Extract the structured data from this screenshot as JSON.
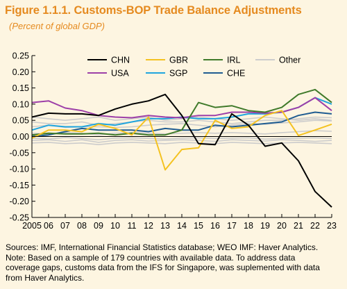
{
  "figure": {
    "title": "Figure 1.1.1. Customs-BOP Trade Balance Adjustments",
    "subtitle": "(Percent of global GDP)"
  },
  "chart_data": {
    "type": "line",
    "x": [
      "2005",
      "06",
      "07",
      "08",
      "09",
      "10",
      "11",
      "12",
      "13",
      "14",
      "15",
      "16",
      "17",
      "18",
      "19",
      "20",
      "21",
      "22",
      "23"
    ],
    "ylim": [
      -0.25,
      0.25
    ],
    "yticks": [
      0.25,
      0.2,
      0.15,
      0.1,
      0.05,
      0.0,
      -0.05,
      -0.1,
      -0.15,
      -0.2,
      -0.25
    ],
    "ytick_labels": [
      "0.25",
      "0.20",
      "0.15",
      "0.10",
      "0.05",
      "0.00",
      "-0.05",
      "-0.10",
      "-0.15",
      "-0.20",
      "-0.25"
    ],
    "grid": false,
    "legend_position": "top-center",
    "series": [
      {
        "name": "CHN",
        "color": "#000000",
        "values": [
          0.06,
          0.072,
          0.07,
          0.07,
          0.065,
          0.085,
          0.1,
          0.11,
          0.13,
          0.065,
          -0.022,
          -0.025,
          0.07,
          0.035,
          -0.03,
          -0.02,
          -0.075,
          -0.17,
          -0.218
        ]
      },
      {
        "name": "USA",
        "color": "#9D3FA8",
        "values": [
          0.105,
          0.11,
          0.088,
          0.08,
          0.065,
          0.06,
          0.058,
          0.065,
          0.06,
          0.058,
          0.065,
          0.065,
          0.075,
          0.075,
          0.072,
          0.075,
          0.09,
          0.12,
          0.08
        ]
      },
      {
        "name": "GBR",
        "color": "#F4C220",
        "values": [
          -0.005,
          0.02,
          0.02,
          0.015,
          0.038,
          0.025,
          0.005,
          0.06,
          -0.103,
          -0.04,
          -0.035,
          0.05,
          0.025,
          0.03,
          0.065,
          0.08,
          0.003,
          0.02,
          0.038
        ]
      },
      {
        "name": "SGP",
        "color": "#1FA5DE",
        "values": [
          0.02,
          0.035,
          0.03,
          0.03,
          0.04,
          0.035,
          0.045,
          0.055,
          0.055,
          0.06,
          0.055,
          0.055,
          0.06,
          0.07,
          0.07,
          0.075,
          0.09,
          0.12,
          0.1
        ]
      },
      {
        "name": "IRL",
        "color": "#3F7A2A",
        "values": [
          0.005,
          0.01,
          0.008,
          0.008,
          0.01,
          0.005,
          0.01,
          0.005,
          0.005,
          0.02,
          0.105,
          0.09,
          0.095,
          0.08,
          0.075,
          0.09,
          0.13,
          0.145,
          0.105
        ]
      },
      {
        "name": "CHE",
        "color": "#1F5C91",
        "values": [
          0.0,
          0.005,
          0.015,
          0.025,
          0.02,
          0.02,
          0.02,
          0.015,
          0.025,
          0.02,
          0.02,
          0.035,
          0.03,
          0.035,
          0.04,
          0.045,
          0.065,
          0.075,
          0.07
        ]
      },
      {
        "name": "Other",
        "color": "#CCCCCC",
        "values": [
          0.02,
          0.015,
          0.02,
          0.015,
          0.01,
          0.02,
          0.015,
          0.015,
          0.01,
          0.015,
          0.02,
          0.015,
          0.02,
          0.015,
          0.015,
          0.02,
          0.025,
          0.03,
          0.03
        ]
      }
    ],
    "other_lines": [
      [
        0.045,
        0.04,
        0.04,
        0.045,
        0.035,
        0.04,
        0.045,
        0.05,
        0.045,
        0.045,
        0.05,
        0.045,
        0.04,
        0.045,
        0.05,
        0.05,
        0.055,
        0.06,
        0.058
      ],
      [
        0.03,
        0.035,
        0.028,
        0.03,
        0.03,
        0.028,
        0.03,
        0.035,
        0.038,
        0.04,
        0.035,
        0.03,
        0.035,
        0.04,
        0.038,
        0.042,
        0.045,
        0.05,
        0.048
      ],
      [
        0.01,
        0.008,
        0.012,
        0.01,
        0.005,
        0.01,
        0.012,
        0.01,
        0.008,
        0.01,
        0.012,
        0.01,
        0.012,
        0.01,
        0.008,
        0.012,
        0.015,
        0.018,
        0.016
      ],
      [
        -0.005,
        -0.008,
        -0.003,
        -0.006,
        -0.01,
        -0.005,
        -0.004,
        -0.006,
        -0.008,
        -0.005,
        -0.004,
        -0.006,
        -0.005,
        -0.004,
        -0.008,
        -0.006,
        -0.005,
        -0.004,
        -0.006
      ],
      [
        -0.012,
        -0.01,
        -0.015,
        -0.01,
        -0.018,
        -0.012,
        -0.01,
        -0.014,
        -0.012,
        -0.01,
        -0.012,
        -0.015,
        -0.01,
        -0.012,
        -0.014,
        -0.01,
        -0.012,
        -0.015,
        -0.012
      ],
      [
        -0.02,
        -0.018,
        -0.022,
        -0.02,
        -0.025,
        -0.02,
        -0.018,
        -0.02,
        -0.022,
        -0.018,
        -0.02,
        -0.022,
        -0.018,
        -0.02,
        -0.022,
        -0.02,
        -0.018,
        -0.02,
        -0.022
      ],
      [
        0.06,
        0.055,
        0.05,
        0.055,
        0.06,
        0.05,
        0.055,
        0.06,
        0.05,
        0.055,
        0.06,
        0.055,
        0.05,
        0.055,
        0.06,
        0.055,
        0.05,
        0.055,
        0.05
      ]
    ]
  },
  "notes": {
    "line1": "Sources: IMF, International Financial Statistics database; WEO IMF: Haver Analytics.",
    "line2": "Note: Based on a sample of 179 countries with available data. To address data",
    "line3": "coverage gaps, customs data from the IFS for Singapore, was suplemented with data",
    "line4": "from Haver Analytics."
  }
}
